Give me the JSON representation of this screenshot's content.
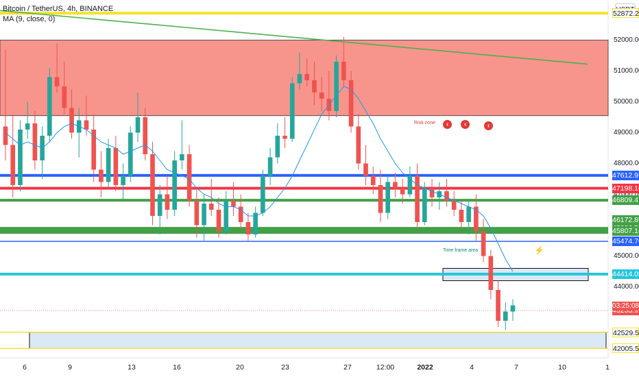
{
  "header": {
    "title": "Bitcoin / TetherUS, 4h, BINANCE",
    "indicator": "MA (9, close, 0)",
    "currency": "USDT"
  },
  "colors": {
    "up": "#26a69a",
    "down": "#ef5350",
    "ma": "#2196f3",
    "trend": "#4caf50",
    "risk_zone": "#f7958c",
    "yellow": "#f5e12c",
    "blue": "#2962ff",
    "red": "#f23645",
    "green": "#43a047",
    "cyan": "#26c6da",
    "box_fill": "#dbe8f6"
  },
  "annotations": {
    "risk_zone": "Risk zone",
    "time_frame": "Time frame area"
  },
  "current_timer": "03:25:08",
  "chart_data": {
    "type": "candlestick",
    "symbol": "Bitcoin / TetherUS",
    "interval": "4h",
    "exchange": "BINANCE",
    "ylim": [
      41700,
      53300
    ],
    "y_ticks": [
      44000,
      45000,
      46000,
      47000,
      48000,
      49000,
      50000,
      51000,
      52000
    ],
    "x_ticks": [
      {
        "label": "6",
        "bold": false
      },
      {
        "label": "9",
        "bold": false
      },
      {
        "label": "13",
        "bold": false
      },
      {
        "label": "16",
        "bold": false
      },
      {
        "label": "20",
        "bold": false
      },
      {
        "label": "23",
        "bold": false
      },
      {
        "label": "27",
        "bold": false
      },
      {
        "label": "12:00",
        "bold": false
      },
      {
        "label": "2022",
        "bold": true
      },
      {
        "label": "4",
        "bold": false
      },
      {
        "label": "7",
        "bold": false
      },
      {
        "label": "10",
        "bold": false
      },
      {
        "label": "1",
        "bold": false
      }
    ],
    "price_levels": [
      {
        "label": "52872.28",
        "value": 52872.28,
        "color": "yellow",
        "style": "thick"
      },
      {
        "label": "47612.95",
        "value": 47612.95,
        "color": "blue",
        "style": "thick"
      },
      {
        "label": "47198.16",
        "value": 47198.16,
        "color": "red",
        "style": "thick"
      },
      {
        "label": "46809.41",
        "value": 46809.41,
        "color": "green",
        "style": "thick"
      },
      {
        "label": "46172.85",
        "value": 46172.85,
        "color": "green",
        "style": "none"
      },
      {
        "label": "45896.55",
        "value": 45896.55,
        "color": "green",
        "style": "thick"
      },
      {
        "label": "45807.16",
        "value": 45807.16,
        "color": "green",
        "style": "band"
      },
      {
        "label": "45474.76",
        "value": 45474.76,
        "color": "blue",
        "style": "thin"
      },
      {
        "label": "44414.05",
        "value": 44414.05,
        "color": "cyan",
        "style": "thick"
      },
      {
        "label": "42529.51",
        "value": 42529.51,
        "color": "yellow",
        "style": "thin"
      },
      {
        "label": "42005.50",
        "value": 42005.5,
        "color": "yellow",
        "style": "thin"
      }
    ],
    "current_price": {
      "label": "43233.97",
      "value": 43233.97
    },
    "risk_zone": {
      "from": 49550,
      "to": 52000
    },
    "candles": [
      [
        49200,
        51700,
        48100,
        48600
      ],
      [
        48600,
        49600,
        46900,
        47300
      ],
      [
        47300,
        49400,
        47100,
        49100
      ],
      [
        49100,
        50000,
        48800,
        49300
      ],
      [
        49300,
        49700,
        47800,
        48100
      ],
      [
        48100,
        49200,
        47500,
        48900
      ],
      [
        48900,
        51100,
        48700,
        50800
      ],
      [
        50800,
        51900,
        50300,
        50500
      ],
      [
        50500,
        51300,
        49600,
        49800
      ],
      [
        49800,
        50400,
        48800,
        49000
      ],
      [
        49000,
        49800,
        48200,
        49400
      ],
      [
        49400,
        50200,
        48900,
        49100
      ],
      [
        49100,
        49600,
        47400,
        47800
      ],
      [
        47800,
        48400,
        46900,
        47400
      ],
      [
        47400,
        48800,
        47200,
        48500
      ],
      [
        48500,
        48900,
        47100,
        47300
      ],
      [
        47300,
        48000,
        46800,
        47600
      ],
      [
        47600,
        49200,
        47400,
        49000
      ],
      [
        49000,
        50300,
        48700,
        49500
      ],
      [
        49500,
        49800,
        48100,
        48300
      ],
      [
        48300,
        48700,
        46000,
        46300
      ],
      [
        46300,
        47300,
        45700,
        47000
      ],
      [
        47000,
        47600,
        46200,
        46500
      ],
      [
        46500,
        48400,
        46300,
        48100
      ],
      [
        48100,
        49400,
        47800,
        48300
      ],
      [
        48300,
        48600,
        46600,
        46800
      ],
      [
        46800,
        47200,
        45600,
        46000
      ],
      [
        46000,
        47000,
        45500,
        46700
      ],
      [
        46700,
        47500,
        46300,
        46500
      ],
      [
        46500,
        46900,
        45600,
        45800
      ],
      [
        45800,
        47100,
        45700,
        46800
      ],
      [
        46800,
        47400,
        46300,
        46600
      ],
      [
        46600,
        47000,
        45900,
        46100
      ],
      [
        46100,
        46400,
        45500,
        45700
      ],
      [
        45700,
        46600,
        45600,
        46400
      ],
      [
        46400,
        47800,
        46300,
        47600
      ],
      [
        47600,
        48500,
        47300,
        48200
      ],
      [
        48200,
        49300,
        48000,
        48900
      ],
      [
        48900,
        49500,
        48500,
        48800
      ],
      [
        48800,
        50800,
        48700,
        50600
      ],
      [
        50600,
        51600,
        50400,
        50900
      ],
      [
        50900,
        51400,
        50500,
        50700
      ],
      [
        50700,
        51300,
        49900,
        50300
      ],
      [
        50300,
        50800,
        49700,
        50100
      ],
      [
        50100,
        51000,
        49400,
        49700
      ],
      [
        49700,
        51500,
        49500,
        51300
      ],
      [
        51300,
        52100,
        50500,
        50700
      ],
      [
        50700,
        51000,
        49000,
        49200
      ],
      [
        49200,
        49600,
        47800,
        48000
      ],
      [
        48000,
        48600,
        47300,
        47600
      ],
      [
        47600,
        47900,
        47000,
        47300
      ],
      [
        47300,
        47800,
        46100,
        46400
      ],
      [
        46400,
        47600,
        46200,
        47400
      ],
      [
        47400,
        47700,
        46900,
        47200
      ],
      [
        47200,
        47500,
        46700,
        47000
      ],
      [
        47000,
        47900,
        46900,
        47600
      ],
      [
        47600,
        48000,
        45900,
        46100
      ],
      [
        46100,
        47400,
        46000,
        47200
      ],
      [
        47200,
        47500,
        46600,
        46900
      ],
      [
        46900,
        47400,
        46500,
        47100
      ],
      [
        47100,
        47500,
        46600,
        46800
      ],
      [
        46800,
        47100,
        46300,
        46500
      ],
      [
        46500,
        46800,
        45900,
        46100
      ],
      [
        46100,
        46800,
        45700,
        46600
      ],
      [
        46600,
        47000,
        45500,
        45800
      ],
      [
        45800,
        46200,
        44800,
        45000
      ],
      [
        45000,
        45200,
        43600,
        43900
      ],
      [
        43900,
        44200,
        42700,
        42900
      ],
      [
        42900,
        43500,
        42600,
        43200
      ],
      [
        43200,
        43600,
        42900,
        43400
      ]
    ],
    "ma": [
      49000,
      48800,
      48600,
      48700,
      48600,
      48500,
      48700,
      49000,
      49200,
      49300,
      49200,
      49100,
      48900,
      48700,
      48600,
      48500,
      48300,
      48400,
      48500,
      48600,
      48400,
      48100,
      47800,
      47700,
      47600,
      47500,
      47200,
      47000,
      46900,
      46700,
      46600,
      46600,
      46500,
      46300,
      46300,
      46400,
      46600,
      46900,
      47200,
      47600,
      48100,
      48600,
      49100,
      49600,
      49900,
      50200,
      50500,
      50400,
      50100,
      49700,
      49300,
      48800,
      48400,
      48000,
      47700,
      47500,
      47300,
      47200,
      47100,
      47000,
      46900,
      46800,
      46700,
      46600,
      46500,
      46300,
      45900,
      45400,
      44900,
      44500
    ],
    "trendline": {
      "from": [
        0,
        52960
      ],
      "to": [
        69,
        51220
      ]
    },
    "boxes": [
      {
        "name": "time-frame-box",
        "from_index": 52,
        "to_index": 70,
        "top": 44600,
        "bottom": 44200
      },
      {
        "name": "support-box",
        "from_index": 3,
        "to_index": 70,
        "top": 42529.51,
        "bottom": 42005.5
      }
    ]
  }
}
